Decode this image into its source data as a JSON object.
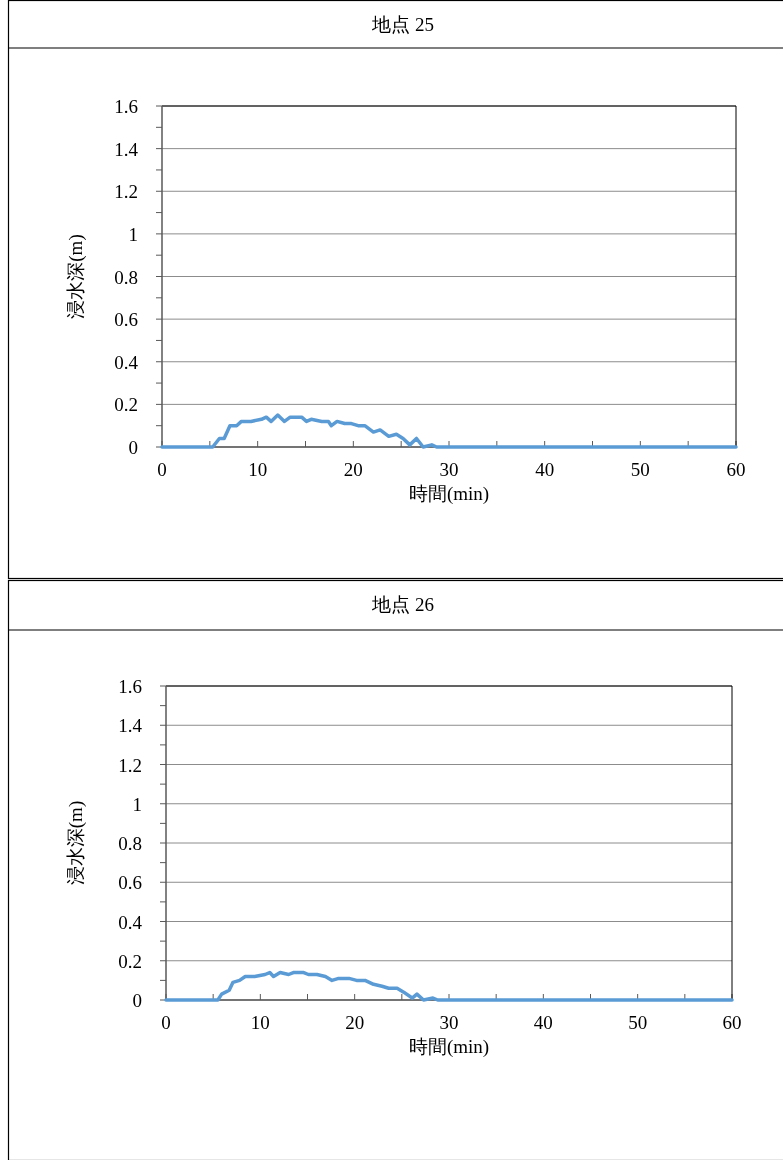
{
  "chart_data": [
    {
      "type": "line",
      "title": "地点 25",
      "xlabel": "時間(min)",
      "ylabel": "浸水深(m)",
      "xlim": [
        0,
        60
      ],
      "ylim": [
        0,
        1.6
      ],
      "grid": "y",
      "marker": "none",
      "line_style": "solid",
      "xticks": [
        0,
        {
          "value": 5,
          "label": null
        },
        10,
        {
          "value": 15,
          "label": null
        },
        20,
        {
          "value": 25,
          "label": null
        },
        30,
        {
          "value": 35,
          "label": null
        },
        40,
        {
          "value": 45,
          "label": null
        },
        50,
        {
          "value": 55,
          "label": null
        },
        60
      ],
      "yticks": [
        0,
        {
          "value": 0.1,
          "label": null
        },
        0.2,
        {
          "value": 0.3,
          "label": null
        },
        0.4,
        {
          "value": 0.5,
          "label": null
        },
        0.6,
        {
          "value": 0.7,
          "label": null
        },
        0.8,
        {
          "value": 0.9,
          "label": null
        },
        1,
        {
          "value": 1.1,
          "label": null
        },
        1.2,
        {
          "value": 1.3,
          "label": null
        },
        1.4,
        {
          "value": 1.5,
          "label": null
        },
        1.6
      ],
      "series": [
        {
          "color": "#5b9bd5",
          "x": [
            0,
            5.3,
            6.0,
            6.5,
            7.1,
            7.8,
            8.3,
            9.3,
            10.4,
            10.9,
            11.4,
            12.1,
            12.8,
            13.4,
            14.6,
            15.1,
            15.6,
            16.7,
            17.4,
            17.7,
            18.3,
            19.1,
            19.8,
            20.5,
            21.2,
            22.1,
            22.8,
            23.7,
            24.5,
            25.2,
            25.9,
            26.6,
            27.3,
            28.2,
            28.7,
            60
          ],
          "values": [
            0,
            0,
            0.04,
            0.04,
            0.1,
            0.1,
            0.12,
            0.12,
            0.13,
            0.14,
            0.12,
            0.15,
            0.12,
            0.14,
            0.14,
            0.12,
            0.13,
            0.12,
            0.12,
            0.1,
            0.12,
            0.11,
            0.11,
            0.1,
            0.1,
            0.07,
            0.08,
            0.05,
            0.06,
            0.04,
            0.01,
            0.04,
            0,
            0.01,
            0,
            0
          ]
        }
      ]
    },
    {
      "type": "line",
      "title": "地点 26",
      "xlabel": "時間(min)",
      "ylabel": "浸水深(m)",
      "xlim": [
        0,
        60
      ],
      "ylim": [
        0,
        1.6
      ],
      "grid": "y",
      "marker": "none",
      "line_style": "solid",
      "xticks": [
        0,
        {
          "value": 5,
          "label": null
        },
        10,
        {
          "value": 15,
          "label": null
        },
        20,
        {
          "value": 25,
          "label": null
        },
        30,
        {
          "value": 35,
          "label": null
        },
        40,
        {
          "value": 45,
          "label": null
        },
        50,
        {
          "value": 55,
          "label": null
        },
        60
      ],
      "yticks": [
        0,
        {
          "value": 0.1,
          "label": null
        },
        0.2,
        {
          "value": 0.3,
          "label": null
        },
        0.4,
        {
          "value": 0.5,
          "label": null
        },
        0.6,
        {
          "value": 0.7,
          "label": null
        },
        0.8,
        {
          "value": 0.9,
          "label": null
        },
        1,
        {
          "value": 1.1,
          "label": null
        },
        1.2,
        {
          "value": 1.3,
          "label": null
        },
        1.4,
        {
          "value": 1.5,
          "label": null
        },
        1.6
      ],
      "series": [
        {
          "color": "#5b9bd5",
          "x": [
            0,
            5.5,
            5.9,
            6.7,
            7.1,
            7.8,
            8.4,
            9.4,
            10.5,
            11.0,
            11.4,
            12.1,
            13.0,
            13.5,
            14.6,
            15.1,
            16.0,
            16.9,
            17.6,
            18.3,
            19.4,
            20.2,
            21.1,
            22.0,
            22.9,
            23.6,
            24.5,
            25.2,
            26.1,
            26.6,
            27.3,
            28.3,
            28.8,
            60
          ],
          "values": [
            0,
            0,
            0.03,
            0.05,
            0.09,
            0.1,
            0.12,
            0.12,
            0.13,
            0.14,
            0.12,
            0.14,
            0.13,
            0.14,
            0.14,
            0.13,
            0.13,
            0.12,
            0.1,
            0.11,
            0.11,
            0.1,
            0.1,
            0.08,
            0.07,
            0.06,
            0.06,
            0.04,
            0.01,
            0.03,
            0,
            0.01,
            0,
            0
          ]
        }
      ]
    }
  ]
}
